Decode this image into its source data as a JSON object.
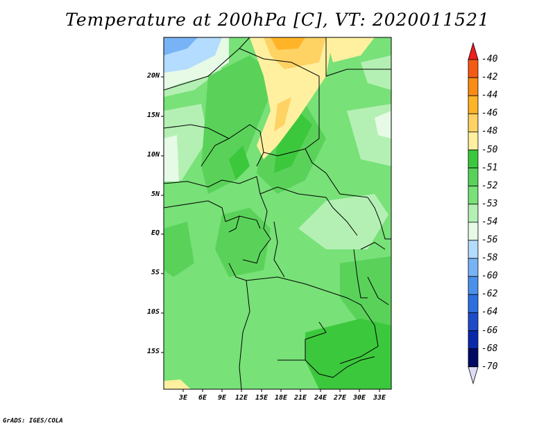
{
  "title": "Temperature at 200hPa [C], VT: 2020011521",
  "credit": "GrADS: IGES/COLA",
  "lat_labels": [
    "20N",
    "15N",
    "10N",
    "5N",
    "EQ",
    "5S",
    "10S",
    "15S"
  ],
  "lon_labels": [
    "3E",
    "6E",
    "9E",
    "12E",
    "15E",
    "18E",
    "21E",
    "24E",
    "27E",
    "30E",
    "33E"
  ],
  "colorbar": {
    "labels": [
      "-40",
      "-42",
      "-44",
      "-46",
      "-48",
      "-50",
      "-51",
      "-52",
      "-53",
      "-54",
      "-56",
      "-58",
      "-60",
      "-62",
      "-64",
      "-66",
      "-68",
      "-70"
    ],
    "colors": [
      "#f01e1e",
      "#f55a14",
      "#fa8c14",
      "#ffb428",
      "#ffd264",
      "#fff0a0",
      "#3cc83c",
      "#5ad25a",
      "#78e178",
      "#b4f0b4",
      "#e6fae6",
      "#b4dcff",
      "#78b4f5",
      "#4b91eb",
      "#2d6ee1",
      "#1e4bc8",
      "#0a28aa",
      "#000a64",
      "#dcdcf5"
    ]
  }
}
